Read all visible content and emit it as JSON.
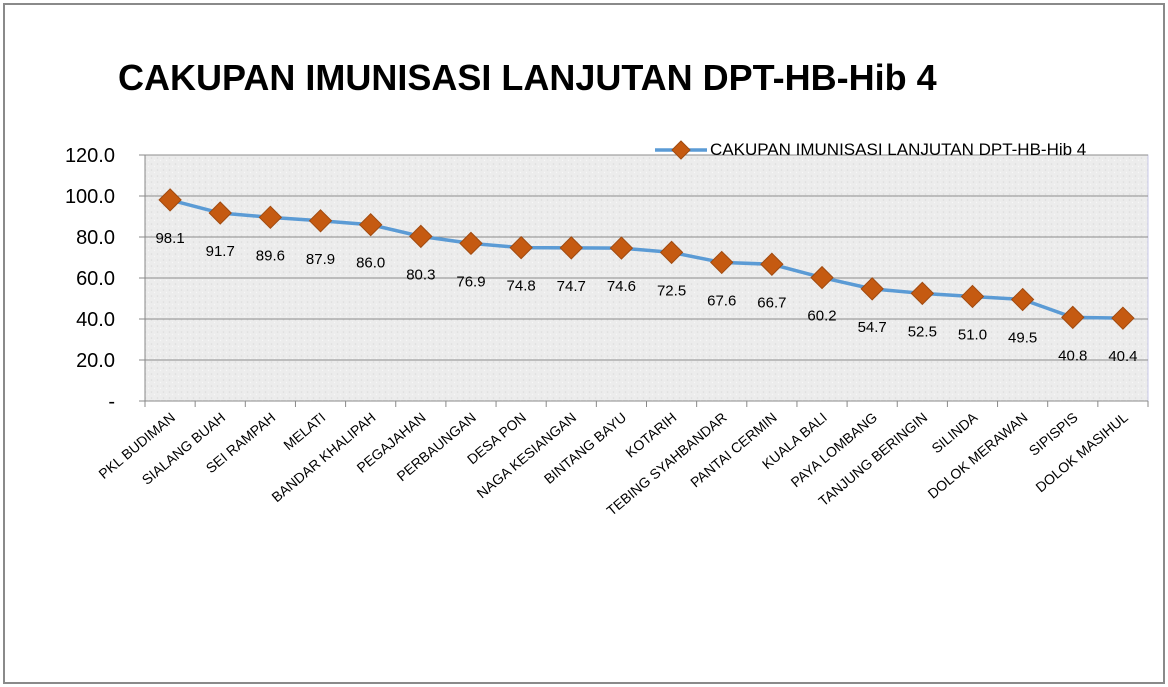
{
  "chart_data": {
    "type": "line",
    "title": "CAKUPAN IMUNISASI LANJUTAN DPT-HB-Hib 4",
    "categories": [
      "PKL BUDIMAN",
      "SIALANG BUAH",
      "SEI RAMPAH",
      "MELATI",
      "BANDAR KHALIPAH",
      "PEGAJAHAN",
      "PERBAUNGAN",
      "DESA PON",
      "NAGA KESIANGAN",
      "BINTANG BAYU",
      "KOTARIH",
      "TEBING SYAHBANDAR",
      "PANTAI CERMIN",
      "KUALA BALI",
      "PAYA LOMBANG",
      "TANJUNG BERINGIN",
      "SILINDA",
      "DOLOK MERAWAN",
      "SIPISPIS",
      "DOLOK MASIHUL"
    ],
    "series": [
      {
        "name": "CAKUPAN IMUNISASI LANJUTAN DPT-HB-Hib 4",
        "color": "#5b9bd5",
        "marker_color": "#c55a11",
        "values": [
          98.1,
          91.7,
          89.6,
          87.9,
          86.0,
          80.3,
          76.9,
          74.8,
          74.7,
          74.6,
          72.5,
          67.6,
          66.7,
          60.2,
          54.7,
          52.5,
          51.0,
          49.5,
          40.8,
          40.4
        ],
        "value_labels": [
          "98.1",
          "91.7",
          "89.6",
          "87.9",
          "86.0",
          "80.3",
          "76.9",
          "74.8",
          "74.7",
          "74.6",
          "72.5",
          "67.6",
          "66.7",
          "60.2",
          "54.7",
          "52.5",
          "51.0",
          "49.5",
          "40.8",
          "40.4"
        ]
      }
    ],
    "ylim": [
      0,
      120
    ],
    "yticks": [
      {
        "value": 0,
        "label": "-"
      },
      {
        "value": 20,
        "label": "20.0"
      },
      {
        "value": 40,
        "label": "40.0"
      },
      {
        "value": 60,
        "label": "60.0"
      },
      {
        "value": 80,
        "label": "80.0"
      },
      {
        "value": 100,
        "label": "100.0"
      },
      {
        "value": 120,
        "label": "120.0"
      }
    ],
    "grid": true,
    "legend": "top-right"
  }
}
